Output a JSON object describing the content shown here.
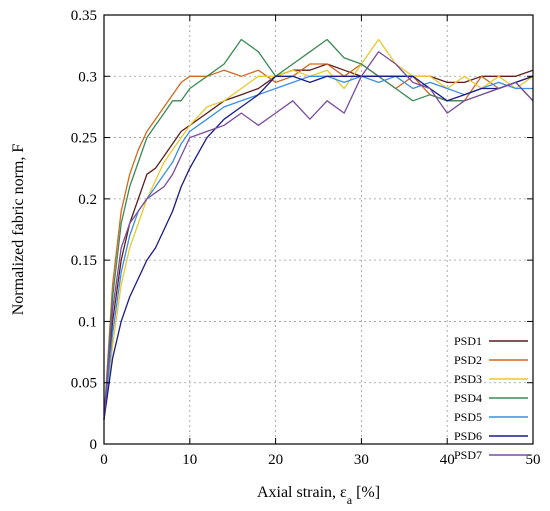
{
  "chart_data": {
    "type": "line",
    "title": "",
    "xlabel": "Axial strain, ε",
    "xlabel_sub": "a",
    "xlabel_suffix": " [%]",
    "ylabel": "Normalized fabric norm, F",
    "xlim": [
      0,
      50
    ],
    "ylim": [
      0,
      0.35
    ],
    "x_ticks": [
      0,
      10,
      20,
      30,
      40,
      50
    ],
    "y_ticks": [
      0,
      0.05,
      0.1,
      0.15,
      0.2,
      0.25,
      0.3,
      0.35
    ],
    "x_tick_labels": [
      "0",
      "10",
      "20",
      "30",
      "40",
      "50"
    ],
    "y_tick_labels": [
      "0",
      "0.05",
      "0.1",
      "0.15",
      "0.2",
      "0.25",
      "0.3",
      "0.35"
    ],
    "grid": true,
    "legend_position": "bottom-right",
    "series": [
      {
        "name": "PSD1",
        "color": "#5a1e1e",
        "x": [
          0,
          1,
          2,
          3,
          4,
          5,
          6,
          7,
          8,
          9,
          10,
          12,
          14,
          16,
          18,
          20,
          22,
          24,
          26,
          28,
          30,
          32,
          34,
          36,
          38,
          40,
          42,
          44,
          46,
          48,
          50
        ],
        "y": [
          0.02,
          0.1,
          0.15,
          0.18,
          0.2,
          0.22,
          0.225,
          0.235,
          0.245,
          0.255,
          0.26,
          0.27,
          0.28,
          0.285,
          0.29,
          0.3,
          0.305,
          0.305,
          0.31,
          0.305,
          0.3,
          0.3,
          0.3,
          0.3,
          0.3,
          0.295,
          0.295,
          0.3,
          0.3,
          0.3,
          0.305
        ]
      },
      {
        "name": "PSD2",
        "color": "#d2691e",
        "x": [
          0,
          1,
          2,
          3,
          4,
          5,
          6,
          7,
          8,
          9,
          10,
          12,
          14,
          16,
          18,
          20,
          22,
          24,
          26,
          28,
          30,
          32,
          34,
          36,
          38,
          40,
          42,
          44,
          46,
          48,
          50
        ],
        "y": [
          0.02,
          0.13,
          0.19,
          0.22,
          0.24,
          0.255,
          0.265,
          0.275,
          0.285,
          0.295,
          0.3,
          0.3,
          0.305,
          0.3,
          0.305,
          0.295,
          0.3,
          0.31,
          0.31,
          0.3,
          0.31,
          0.3,
          0.29,
          0.3,
          0.285,
          0.28,
          0.28,
          0.3,
          0.29,
          0.295,
          0.3
        ]
      },
      {
        "name": "PSD3",
        "color": "#e8c930",
        "x": [
          0,
          1,
          2,
          3,
          4,
          5,
          6,
          7,
          8,
          9,
          10,
          12,
          14,
          16,
          18,
          20,
          22,
          24,
          26,
          28,
          30,
          32,
          34,
          36,
          38,
          40,
          42,
          44,
          46,
          48,
          50
        ],
        "y": [
          0.02,
          0.08,
          0.13,
          0.16,
          0.18,
          0.2,
          0.215,
          0.23,
          0.24,
          0.25,
          0.26,
          0.275,
          0.28,
          0.29,
          0.3,
          0.3,
          0.305,
          0.3,
          0.305,
          0.29,
          0.31,
          0.33,
          0.31,
          0.3,
          0.3,
          0.29,
          0.3,
          0.29,
          0.3,
          0.29,
          0.3
        ]
      },
      {
        "name": "PSD4",
        "color": "#3a8a55",
        "x": [
          0,
          1,
          2,
          3,
          4,
          5,
          6,
          7,
          8,
          9,
          10,
          12,
          14,
          16,
          18,
          20,
          22,
          24,
          26,
          28,
          30,
          32,
          34,
          36,
          38,
          40,
          42,
          44,
          46,
          48,
          50
        ],
        "y": [
          0.02,
          0.12,
          0.18,
          0.21,
          0.23,
          0.25,
          0.26,
          0.27,
          0.28,
          0.28,
          0.29,
          0.3,
          0.31,
          0.33,
          0.32,
          0.3,
          0.31,
          0.32,
          0.33,
          0.315,
          0.31,
          0.3,
          0.29,
          0.28,
          0.285,
          0.28,
          0.28,
          0.285,
          0.29,
          0.295,
          0.28
        ]
      },
      {
        "name": "PSD5",
        "color": "#3a8ee6",
        "x": [
          0,
          1,
          2,
          3,
          4,
          5,
          6,
          7,
          8,
          9,
          10,
          12,
          14,
          16,
          18,
          20,
          22,
          24,
          26,
          28,
          30,
          32,
          34,
          36,
          38,
          40,
          42,
          44,
          46,
          48,
          50
        ],
        "y": [
          0.02,
          0.09,
          0.14,
          0.17,
          0.19,
          0.2,
          0.21,
          0.22,
          0.23,
          0.245,
          0.255,
          0.265,
          0.275,
          0.28,
          0.285,
          0.29,
          0.295,
          0.3,
          0.3,
          0.295,
          0.3,
          0.295,
          0.3,
          0.29,
          0.295,
          0.29,
          0.285,
          0.29,
          0.295,
          0.29,
          0.29
        ]
      },
      {
        "name": "PSD6",
        "color": "#1a1a8c",
        "x": [
          0,
          1,
          2,
          3,
          4,
          5,
          6,
          7,
          8,
          9,
          10,
          12,
          14,
          16,
          18,
          20,
          22,
          24,
          26,
          28,
          30,
          32,
          34,
          36,
          38,
          40,
          42,
          44,
          46,
          48,
          50
        ],
        "y": [
          0.02,
          0.07,
          0.1,
          0.12,
          0.135,
          0.15,
          0.16,
          0.175,
          0.19,
          0.21,
          0.225,
          0.25,
          0.265,
          0.275,
          0.285,
          0.3,
          0.3,
          0.295,
          0.3,
          0.3,
          0.3,
          0.3,
          0.3,
          0.3,
          0.29,
          0.28,
          0.285,
          0.29,
          0.29,
          0.295,
          0.3
        ]
      },
      {
        "name": "PSD7",
        "color": "#7a4b9e",
        "x": [
          0,
          1,
          2,
          3,
          4,
          5,
          6,
          7,
          8,
          9,
          10,
          12,
          14,
          16,
          18,
          20,
          22,
          24,
          26,
          28,
          30,
          32,
          34,
          36,
          38,
          40,
          42,
          44,
          46,
          48,
          50
        ],
        "y": [
          0.02,
          0.11,
          0.16,
          0.18,
          0.19,
          0.2,
          0.205,
          0.21,
          0.22,
          0.235,
          0.25,
          0.255,
          0.26,
          0.27,
          0.26,
          0.27,
          0.28,
          0.265,
          0.28,
          0.27,
          0.3,
          0.32,
          0.31,
          0.295,
          0.29,
          0.27,
          0.28,
          0.285,
          0.29,
          0.295,
          0.28
        ]
      }
    ]
  }
}
